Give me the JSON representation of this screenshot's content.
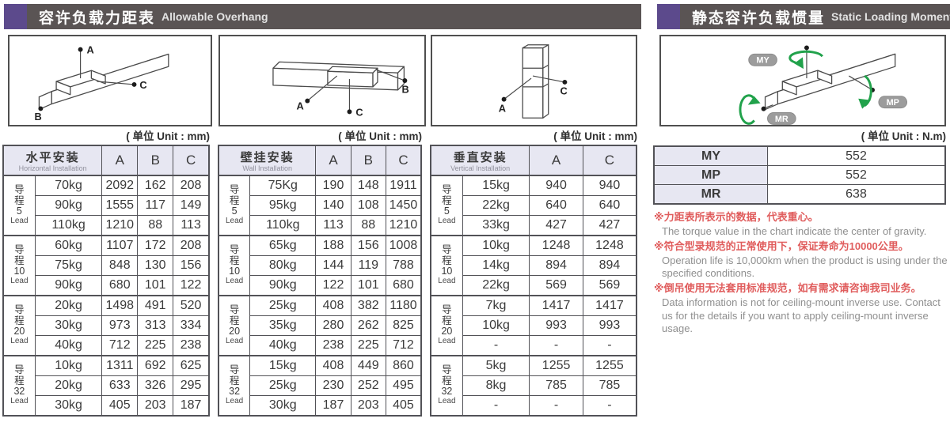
{
  "left": {
    "header": {
      "title_zh": "容许负载力距表",
      "title_en": "Allowable Overhang"
    },
    "unit_label": "( 单位 Unit : mm)",
    "lead_zh": "导程",
    "lead_en": "Lead",
    "tables": [
      {
        "name_zh": "水平安装",
        "name_en": "Horizontal Installation",
        "columns": [
          "A",
          "B",
          "C"
        ],
        "groups": [
          {
            "lead": "5",
            "rows": [
              {
                "load": "70kg",
                "values": [
                  "2092",
                  "162",
                  "208"
                ]
              },
              {
                "load": "90kg",
                "values": [
                  "1555",
                  "117",
                  "149"
                ]
              },
              {
                "load": "110kg",
                "values": [
                  "1210",
                  "88",
                  "113"
                ]
              }
            ]
          },
          {
            "lead": "10",
            "rows": [
              {
                "load": "60kg",
                "values": [
                  "1107",
                  "172",
                  "208"
                ]
              },
              {
                "load": "75kg",
                "values": [
                  "848",
                  "130",
                  "156"
                ]
              },
              {
                "load": "90kg",
                "values": [
                  "680",
                  "101",
                  "122"
                ]
              }
            ]
          },
          {
            "lead": "20",
            "rows": [
              {
                "load": "20kg",
                "values": [
                  "1498",
                  "491",
                  "520"
                ]
              },
              {
                "load": "30kg",
                "values": [
                  "973",
                  "313",
                  "334"
                ]
              },
              {
                "load": "40kg",
                "values": [
                  "712",
                  "225",
                  "238"
                ]
              }
            ]
          },
          {
            "lead": "32",
            "rows": [
              {
                "load": "10kg",
                "values": [
                  "1311",
                  "692",
                  "625"
                ]
              },
              {
                "load": "20kg",
                "values": [
                  "633",
                  "326",
                  "295"
                ]
              },
              {
                "load": "30kg",
                "values": [
                  "405",
                  "203",
                  "187"
                ]
              }
            ]
          }
        ]
      },
      {
        "name_zh": "壁挂安装",
        "name_en": "Wall Installation",
        "columns": [
          "A",
          "B",
          "C"
        ],
        "groups": [
          {
            "lead": "5",
            "rows": [
              {
                "load": "75Kg",
                "values": [
                  "190",
                  "148",
                  "1911"
                ]
              },
              {
                "load": "95kg",
                "values": [
                  "140",
                  "108",
                  "1450"
                ]
              },
              {
                "load": "110kg",
                "values": [
                  "113",
                  "88",
                  "1210"
                ]
              }
            ]
          },
          {
            "lead": "10",
            "rows": [
              {
                "load": "65kg",
                "values": [
                  "188",
                  "156",
                  "1008"
                ]
              },
              {
                "load": "80kg",
                "values": [
                  "144",
                  "119",
                  "788"
                ]
              },
              {
                "load": "90kg",
                "values": [
                  "122",
                  "101",
                  "680"
                ]
              }
            ]
          },
          {
            "lead": "20",
            "rows": [
              {
                "load": "25kg",
                "values": [
                  "408",
                  "382",
                  "1180"
                ]
              },
              {
                "load": "35kg",
                "values": [
                  "280",
                  "262",
                  "825"
                ]
              },
              {
                "load": "40kg",
                "values": [
                  "238",
                  "225",
                  "712"
                ]
              }
            ]
          },
          {
            "lead": "32",
            "rows": [
              {
                "load": "15kg",
                "values": [
                  "408",
                  "449",
                  "860"
                ]
              },
              {
                "load": "25kg",
                "values": [
                  "230",
                  "252",
                  "495"
                ]
              },
              {
                "load": "30kg",
                "values": [
                  "187",
                  "203",
                  "405"
                ]
              }
            ]
          }
        ]
      },
      {
        "name_zh": "垂直安装",
        "name_en": "Vertical Installation",
        "columns": [
          "A",
          "C"
        ],
        "groups": [
          {
            "lead": "5",
            "rows": [
              {
                "load": "15kg",
                "values": [
                  "940",
                  "940"
                ]
              },
              {
                "load": "22kg",
                "values": [
                  "640",
                  "640"
                ]
              },
              {
                "load": "33kg",
                "values": [
                  "427",
                  "427"
                ]
              }
            ]
          },
          {
            "lead": "10",
            "rows": [
              {
                "load": "10kg",
                "values": [
                  "1248",
                  "1248"
                ]
              },
              {
                "load": "14kg",
                "values": [
                  "894",
                  "894"
                ]
              },
              {
                "load": "22kg",
                "values": [
                  "569",
                  "569"
                ]
              }
            ]
          },
          {
            "lead": "20",
            "rows": [
              {
                "load": "7kg",
                "values": [
                  "1417",
                  "1417"
                ]
              },
              {
                "load": "10kg",
                "values": [
                  "993",
                  "993"
                ]
              },
              {
                "load": "-",
                "values": [
                  "-",
                  "-"
                ]
              }
            ]
          },
          {
            "lead": "32",
            "rows": [
              {
                "load": "5kg",
                "values": [
                  "1255",
                  "1255"
                ]
              },
              {
                "load": "8kg",
                "values": [
                  "785",
                  "785"
                ]
              },
              {
                "load": "-",
                "values": [
                  "-",
                  "-"
                ]
              }
            ]
          }
        ]
      }
    ]
  },
  "right": {
    "header": {
      "title_zh": "静态容许负载惯量",
      "title_en": "Static Loading Moment"
    },
    "unit_label": "( 单位 Unit : N.m)",
    "moment_table": {
      "rows": [
        {
          "label": "MY",
          "value": "552"
        },
        {
          "label": "MP",
          "value": "552"
        },
        {
          "label": "MR",
          "value": "638"
        }
      ]
    },
    "notes": [
      {
        "zh": "※力距表所表示的数据，代表重心。",
        "en": "The torque value in the chart indicate the center of gravity."
      },
      {
        "zh": "※符合型录规范的正常使用下，保证寿命为10000公里。",
        "en": "Operation life is 10,000km when the product is using under the specified conditions."
      },
      {
        "zh": "※倒吊使用无法套用标准规范，如有需求请咨询我司业务。",
        "en": "Data information is not for ceiling-mount inverse use. Contact us for the details if you want to apply ceiling-mount inverse usage."
      }
    ]
  },
  "diagrams": {
    "horizontal": {
      "a": "A",
      "b": "B",
      "c": "C"
    },
    "wall": {
      "a": "A",
      "b": "B",
      "c": "C"
    },
    "vertical": {
      "a": "A",
      "c": "C"
    },
    "moment": {
      "my": "MY",
      "mp": "MP",
      "mr": "MR"
    }
  },
  "colors": {
    "header_bar": "#5a5454",
    "accent_purple": "#5c4a8c",
    "table_shade": "#e7e7f2",
    "border": "#525257",
    "note_red": "#e05d5d",
    "note_gray": "#8f8f8f",
    "arrow_green": "#21a24b"
  }
}
